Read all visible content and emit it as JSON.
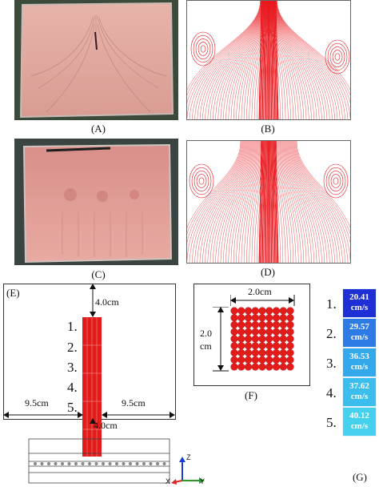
{
  "panels": {
    "A": {
      "caption": "(A)"
    },
    "B": {
      "caption": "(B)"
    },
    "C": {
      "caption": "(C)"
    },
    "D": {
      "caption": "(D)"
    },
    "E": {
      "label": "(E)",
      "top_gap": "4.0cm",
      "bottom_gap": "4.0cm",
      "left_gap": "9.5cm",
      "right_gap": "9.5cm",
      "rows": [
        "1.",
        "2.",
        "3.",
        "4.",
        "5."
      ]
    },
    "F": {
      "caption": "(F)",
      "width_label": "2.0cm",
      "height_label_top": "2.0",
      "height_label_bottom": "cm"
    },
    "G": {
      "caption": "(G)",
      "rows": [
        {
          "index": "1.",
          "value": "20.41",
          "unit": "cm/s",
          "color": "#1e2fd6"
        },
        {
          "index": "2.",
          "value": "29.57",
          "unit": "cm/s",
          "color": "#2f7be6"
        },
        {
          "index": "3.",
          "value": "36.53",
          "unit": "cm/s",
          "color": "#33a9ec"
        },
        {
          "index": "4.",
          "value": "37.62",
          "unit": "cm/s",
          "color": "#3bbded"
        },
        {
          "index": "5.",
          "value": "40.12",
          "unit": "cm/s",
          "color": "#45d0ee"
        }
      ]
    }
  },
  "axes": {
    "z": "Z",
    "x": "X",
    "y": "Y"
  },
  "colors": {
    "streamline": "#e8141a",
    "orifice": "#e21b1b",
    "glass": "#e9b5ad"
  }
}
